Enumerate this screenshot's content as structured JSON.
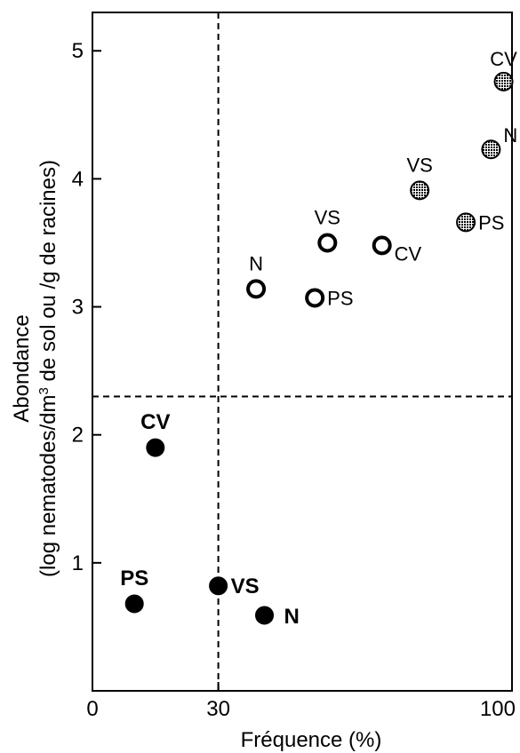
{
  "chart_data": {
    "type": "scatter",
    "xlabel": "Fréquence (%)",
    "ylabel_line1": "Abondance",
    "ylabel_line2": "(log nematodes/dm³ de sol ou /g de racines)",
    "xlim": [
      0,
      100
    ],
    "ylim": [
      0,
      5.3
    ],
    "xticks": [
      0,
      30,
      100
    ],
    "yticks": [
      1,
      2,
      3,
      4,
      5
    ],
    "thresholds": {
      "x": 30,
      "y": 2.3
    },
    "series": [
      {
        "marker": "filled",
        "color": "#000000",
        "points": [
          {
            "label": "CV",
            "x": 15,
            "y": 1.9
          },
          {
            "label": "PS",
            "x": 10,
            "y": 0.68
          },
          {
            "label": "VS",
            "x": 30,
            "y": 0.82
          },
          {
            "label": "N",
            "x": 41,
            "y": 0.59
          }
        ]
      },
      {
        "marker": "hollow",
        "color": "#000000",
        "points": [
          {
            "label": "N",
            "x": 39,
            "y": 3.14
          },
          {
            "label": "VS",
            "x": 56,
            "y": 3.5
          },
          {
            "label": "PS",
            "x": 53,
            "y": 3.07
          },
          {
            "label": "CV",
            "x": 69,
            "y": 3.48
          }
        ]
      },
      {
        "marker": "hatched",
        "color": "#8a8a8a",
        "points": [
          {
            "label": "CV",
            "x": 98,
            "y": 4.76
          },
          {
            "label": "N",
            "x": 95,
            "y": 4.23
          },
          {
            "label": "VS",
            "x": 78,
            "y": 3.91
          },
          {
            "label": "PS",
            "x": 89,
            "y": 3.66
          }
        ]
      }
    ]
  }
}
